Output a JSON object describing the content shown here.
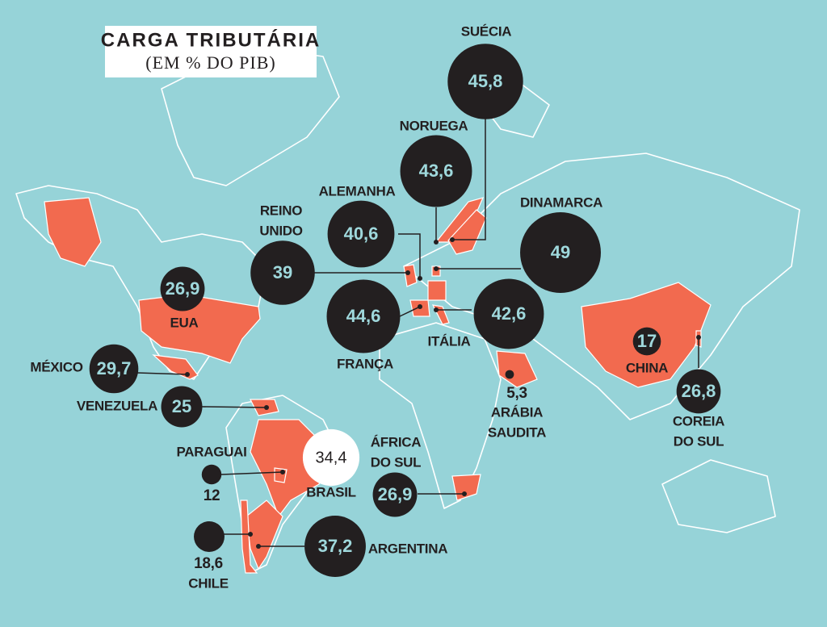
{
  "header": {
    "title": "CARGA TRIBUTÁRIA",
    "subtitle": "(EM % DO PIB)"
  },
  "countries": [
    {
      "name": [
        "SUÉCIA"
      ],
      "value": 45.8,
      "label": "45,8"
    },
    {
      "name": [
        "NORUEGA"
      ],
      "value": 43.6,
      "label": "43,6"
    },
    {
      "name": [
        "ALEMANHA"
      ],
      "value": 40.6,
      "label": "40,6"
    },
    {
      "name": [
        "REINO",
        "UNIDO"
      ],
      "value": 39,
      "label": "39"
    },
    {
      "name": [
        "DINAMARCA"
      ],
      "value": 49,
      "label": "49"
    },
    {
      "name": [
        "EUA"
      ],
      "value": 26.9,
      "label": "26,9"
    },
    {
      "name": [
        "FRANÇA"
      ],
      "value": 44.6,
      "label": "44,6"
    },
    {
      "name": [
        "ITÁLIA"
      ],
      "value": 42.6,
      "label": "42,6"
    },
    {
      "name": [
        "MÉXICO"
      ],
      "value": 29.7,
      "label": "29,7"
    },
    {
      "name": [
        "VENEZUELA"
      ],
      "value": 25,
      "label": "25"
    },
    {
      "name": [
        "CHINA"
      ],
      "value": 17,
      "label": "17"
    },
    {
      "name": [
        "COREIA",
        "DO SUL"
      ],
      "value": 26.8,
      "label": "26,8"
    },
    {
      "name": [
        "ARÁBIA",
        "SAUDITA"
      ],
      "value": 5.3,
      "label": "5,3"
    },
    {
      "name": [
        "ÁFRICA",
        "DO SUL"
      ],
      "value": 26.9,
      "label": "26,9"
    },
    {
      "name": [
        "BRASIL"
      ],
      "value": 34.4,
      "label": "34,4"
    },
    {
      "name": [
        "PARAGUAI"
      ],
      "value": 12,
      "label": "12"
    },
    {
      "name": [
        "CHILE"
      ],
      "value": 18.6,
      "label": "18,6"
    },
    {
      "name": [
        "ARGENTINA"
      ],
      "value": 37.2,
      "label": "37,2"
    }
  ]
}
